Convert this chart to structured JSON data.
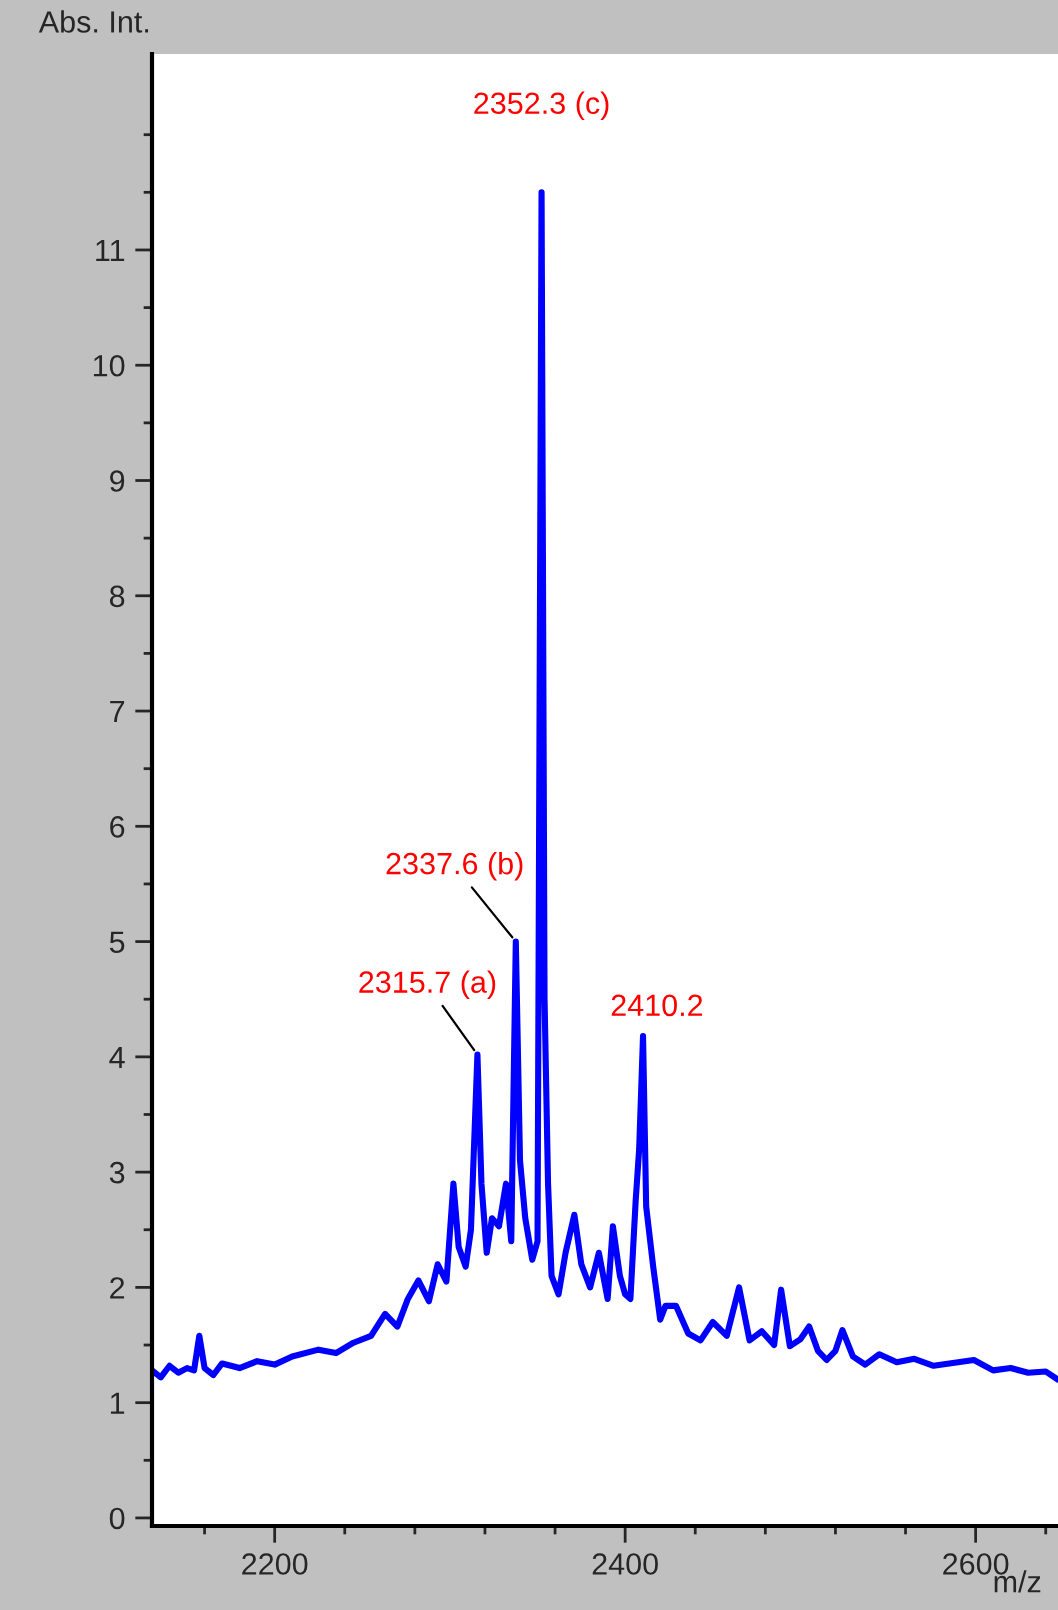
{
  "chart_data": {
    "type": "line",
    "xlabel": "m/z",
    "ylabel": "Abs. Int.",
    "xlim": [
      2130,
      2647
    ],
    "ylim": [
      -0.07,
      12.7
    ],
    "xticks": [
      {
        "value": 2160,
        "label": null
      },
      2200,
      {
        "value": 2240,
        "label": null
      },
      {
        "value": 2280,
        "label": null
      },
      {
        "value": 2320,
        "label": null
      },
      {
        "value": 2360,
        "label": null
      },
      2400,
      {
        "value": 2440,
        "label": null
      },
      {
        "value": 2480,
        "label": null
      },
      {
        "value": 2520,
        "label": null
      },
      {
        "value": 2560,
        "label": null
      },
      2600,
      {
        "value": 2640,
        "label": null
      }
    ],
    "yticks": [
      0,
      {
        "value": 0.5,
        "label": null
      },
      1,
      {
        "value": 1.5,
        "label": null
      },
      2,
      {
        "value": 2.5,
        "label": null
      },
      3,
      {
        "value": 3.5,
        "label": null
      },
      4,
      {
        "value": 4.5,
        "label": null
      },
      5,
      {
        "value": 5.5,
        "label": null
      },
      6,
      {
        "value": 6.5,
        "label": null
      },
      7,
      {
        "value": 7.5,
        "label": null
      },
      8,
      {
        "value": 8.5,
        "label": null
      },
      9,
      {
        "value": 9.5,
        "label": null
      },
      10,
      {
        "value": 10.5,
        "label": null
      },
      11,
      {
        "value": 11.5,
        "label": null
      },
      {
        "value": 12,
        "label": null
      }
    ],
    "grid": false,
    "legend": false,
    "marker": "none",
    "line_style": "solid",
    "series": [
      {
        "color": "#0000ff",
        "x": [
          2130,
          2135,
          2140,
          2145,
          2150,
          2154,
          2157,
          2160,
          2165,
          2170,
          2180,
          2190,
          2200,
          2210,
          2225,
          2235,
          2245,
          2255,
          2263,
          2270,
          2276,
          2282,
          2288,
          2293,
          2298,
          2302,
          2305,
          2309,
          2312,
          2315.7,
          2318,
          2321,
          2324,
          2328,
          2332,
          2335,
          2337.6,
          2340,
          2343,
          2347,
          2350,
          2352.3,
          2354,
          2356,
          2358,
          2362,
          2366,
          2371,
          2375,
          2380,
          2385,
          2390,
          2393,
          2397,
          2400,
          2403,
          2406,
          2408,
          2410.2,
          2412,
          2416,
          2420,
          2423,
          2429,
          2436,
          2443,
          2450,
          2458,
          2465,
          2471,
          2478,
          2485,
          2489,
          2494,
          2500,
          2505,
          2510,
          2515,
          2520,
          2524,
          2530,
          2537,
          2545,
          2555,
          2565,
          2576,
          2585,
          2599,
          2610,
          2620,
          2630,
          2640,
          2647
        ],
        "values": [
          1.28,
          1.22,
          1.32,
          1.26,
          1.3,
          1.28,
          1.58,
          1.3,
          1.24,
          1.34,
          1.3,
          1.36,
          1.33,
          1.4,
          1.46,
          1.43,
          1.52,
          1.58,
          1.77,
          1.66,
          1.9,
          2.06,
          1.88,
          2.2,
          2.05,
          2.9,
          2.35,
          2.18,
          2.5,
          4.02,
          2.9,
          2.3,
          2.6,
          2.53,
          2.9,
          2.4,
          5.0,
          3.1,
          2.6,
          2.24,
          2.4,
          11.5,
          4.5,
          2.9,
          2.1,
          1.94,
          2.3,
          2.63,
          2.2,
          2.0,
          2.3,
          1.9,
          2.53,
          2.1,
          1.94,
          1.9,
          2.75,
          3.2,
          4.18,
          2.7,
          2.18,
          1.72,
          1.84,
          1.84,
          1.6,
          1.54,
          1.7,
          1.58,
          2.0,
          1.54,
          1.62,
          1.5,
          1.98,
          1.49,
          1.55,
          1.66,
          1.45,
          1.37,
          1.45,
          1.63,
          1.4,
          1.33,
          1.42,
          1.35,
          1.38,
          1.32,
          1.34,
          1.37,
          1.28,
          1.3,
          1.26,
          1.27,
          1.2
        ]
      }
    ],
    "annotations": [
      {
        "text": "2352.3 (c)",
        "x": 2352.3,
        "y": 11.5
      },
      {
        "text": "2337.6 (b)",
        "x": 2337.6,
        "y": 5.0
      },
      {
        "text": "2315.7 (a)",
        "x": 2315.7,
        "y": 4.02
      },
      {
        "text": "2410.2",
        "x": 2410.2,
        "y": 4.18
      }
    ]
  }
}
